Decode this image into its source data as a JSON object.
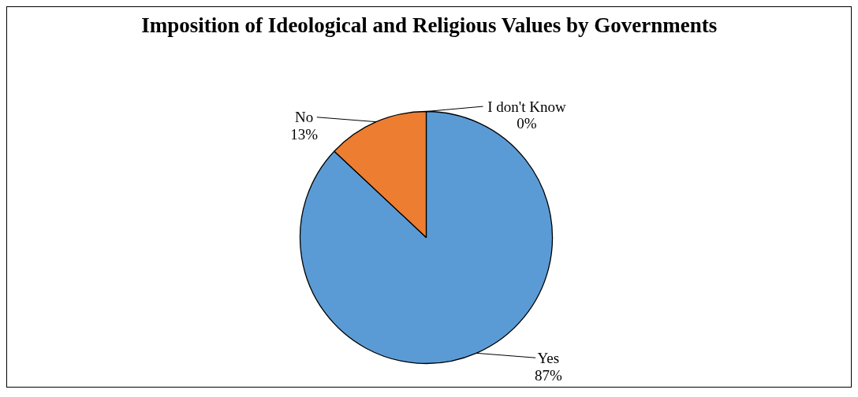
{
  "chart_data": {
    "type": "pie",
    "title": "Imposition of Ideological and Religious Values by Governments",
    "categories": [
      "Yes",
      "No",
      "I don't Know"
    ],
    "values": [
      87,
      13,
      0
    ],
    "colors": [
      "#5b9bd5",
      "#ed7d31",
      "#a5a5a5"
    ],
    "value_labels": [
      "87%",
      "13%",
      "0%"
    ]
  }
}
